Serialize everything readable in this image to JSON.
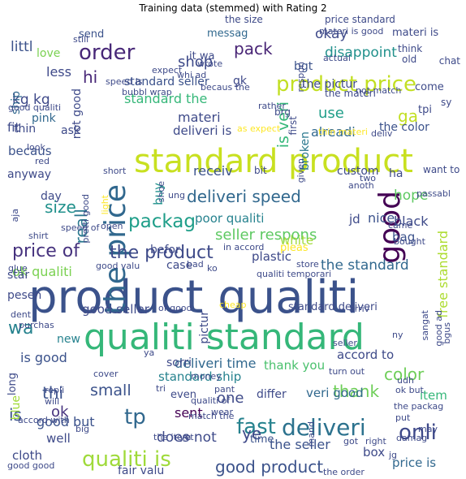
{
  "chart_data": {
    "type": "wordcloud",
    "title": "Training data (stemmed) with Rating 2",
    "words": [
      {
        "text": "product qualiti",
        "color": "#3b528b"
      },
      {
        "text": "standard product",
        "color": "#c8e020"
      },
      {
        "text": "qualiti standard",
        "color": "#35b779"
      },
      {
        "text": "the price",
        "color": "#31688e"
      },
      {
        "text": "deliveri",
        "color": "#2c728e"
      },
      {
        "text": "good",
        "color": "#440154"
      },
      {
        "text": "product price",
        "color": "#c2df23"
      },
      {
        "text": "order",
        "color": "#482878"
      },
      {
        "text": "qualiti is",
        "color": "#9fda3a"
      },
      {
        "text": "fast",
        "color": "#26828e"
      },
      {
        "text": "deliveri speed",
        "color": "#31688e"
      },
      {
        "text": "onli",
        "color": "#3e4989"
      },
      {
        "text": "good product",
        "color": "#3b528b"
      },
      {
        "text": "packag",
        "color": "#1f9e89"
      },
      {
        "text": "the product",
        "color": "#3e4a89"
      },
      {
        "text": "price of",
        "color": "#46327e"
      },
      {
        "text": "tp",
        "color": "#31688e"
      },
      {
        "text": "wa",
        "color": "#26828e"
      },
      {
        "text": "hi",
        "color": "#482878"
      },
      {
        "text": "pack",
        "color": "#482475"
      },
      {
        "text": "ga",
        "color": "#c2df23"
      },
      {
        "text": "reall",
        "color": "#2a788e"
      },
      {
        "text": "size",
        "color": "#21918c"
      },
      {
        "text": "color",
        "color": "#6ece58"
      },
      {
        "text": "thank",
        "color": "#6ece58"
      },
      {
        "text": "small",
        "color": "#3b528b"
      },
      {
        "text": "the standard",
        "color": "#31688e"
      },
      {
        "text": "seller respons",
        "color": "#5ec962"
      },
      {
        "text": "use",
        "color": "#1f9e89"
      },
      {
        "text": "disappoint",
        "color": "#21918c"
      },
      {
        "text": "shop",
        "color": "#3e4a89"
      },
      {
        "text": "is veri",
        "color": "#35b779"
      },
      {
        "text": "thi",
        "color": "#3b528b"
      },
      {
        "text": "is",
        "color": "#3b528b"
      },
      {
        "text": "ok",
        "color": "#46327e"
      },
      {
        "text": "one",
        "color": "#3e4a89"
      },
      {
        "text": "ye",
        "color": "#3e4989"
      },
      {
        "text": "does not",
        "color": "#3e4a89"
      },
      {
        "text": "sent",
        "color": "#440154"
      },
      {
        "text": "ok qualiti",
        "color": "#7ad151"
      },
      {
        "text": "free standard",
        "color": "#addc30"
      },
      {
        "text": "black",
        "color": "#3e4a89"
      },
      {
        "text": "hope",
        "color": "#5ec962"
      },
      {
        "text": "nice",
        "color": "#3b528b"
      },
      {
        "text": "buy",
        "color": "#21918c"
      },
      {
        "text": "receiv",
        "color": "#3b528b"
      },
      {
        "text": "alreadi",
        "color": "#31688e"
      },
      {
        "text": "okay",
        "color": "#3e4989"
      },
      {
        "text": "kg kg",
        "color": "#3e4989"
      },
      {
        "text": "littl",
        "color": "#3b528b"
      },
      {
        "text": "less",
        "color": "#3e4989"
      },
      {
        "text": "standard the",
        "color": "#35b779"
      },
      {
        "text": "the pictur",
        "color": "#3e4a89"
      },
      {
        "text": "standard seller",
        "color": "#3b528b"
      },
      {
        "text": "poor qualiti",
        "color": "#26828e"
      },
      {
        "text": "jd",
        "color": "#3e4a89"
      },
      {
        "text": "deliveri time",
        "color": "#31688e"
      },
      {
        "text": "standard ship",
        "color": "#26828e"
      },
      {
        "text": "is good",
        "color": "#3b528b"
      },
      {
        "text": "thank you",
        "color": "#4ac16d"
      },
      {
        "text": "accord to",
        "color": "#3e4a89"
      },
      {
        "text": "good but",
        "color": "#3b528b"
      },
      {
        "text": "well",
        "color": "#3e4a89"
      },
      {
        "text": "the seller",
        "color": "#3b528b"
      },
      {
        "text": "box",
        "color": "#3e4a89"
      },
      {
        "text": "price is",
        "color": "#31688e"
      },
      {
        "text": "veri good",
        "color": "#31688e"
      },
      {
        "text": "item",
        "color": "#35b779"
      },
      {
        "text": "differ",
        "color": "#3e4a89"
      },
      {
        "text": "cloth",
        "color": "#3e4a89"
      },
      {
        "text": "fair valu",
        "color": "#3e4a89"
      },
      {
        "text": "time",
        "color": "#3b528b"
      },
      {
        "text": "new",
        "color": "#26828e"
      },
      {
        "text": "good seller",
        "color": "#3e4a89"
      },
      {
        "text": "befor",
        "color": "#3e4a89"
      },
      {
        "text": "plastic",
        "color": "#3e4989"
      },
      {
        "text": "white",
        "color": "#9fda3a"
      },
      {
        "text": "bag",
        "color": "#3b528b"
      },
      {
        "text": "custom",
        "color": "#3e4a89"
      },
      {
        "text": "ha",
        "color": "#3e4989"
      },
      {
        "text": "gk",
        "color": "#3e4989"
      },
      {
        "text": "bgt",
        "color": "#3b528b"
      },
      {
        "text": "send",
        "color": "#3b528b"
      },
      {
        "text": "messag",
        "color": "#31688e"
      },
      {
        "text": "materi is",
        "color": "#3e4a89"
      },
      {
        "text": "love",
        "color": "#7ad151"
      },
      {
        "text": "it wa",
        "color": "#3e4a89"
      },
      {
        "text": "ship",
        "color": "#31688e"
      },
      {
        "text": "fit",
        "color": "#3e4a89"
      },
      {
        "text": "pink",
        "color": "#31688e"
      },
      {
        "text": "ask",
        "color": "#3e4a89"
      },
      {
        "text": "becaus",
        "color": "#3b528b"
      },
      {
        "text": "anyway",
        "color": "#3e4a89"
      },
      {
        "text": "day",
        "color": "#3e4a89"
      },
      {
        "text": "materi",
        "color": "#3e4a89"
      },
      {
        "text": "deliveri is",
        "color": "#3e4a89"
      },
      {
        "text": "the color",
        "color": "#3b528b"
      },
      {
        "text": "tpi",
        "color": "#3e4a89"
      },
      {
        "text": "sy",
        "color": "#3e4a89"
      },
      {
        "text": "come",
        "color": "#3e4a89"
      },
      {
        "text": "broken",
        "color": "#2a788e"
      },
      {
        "text": "star",
        "color": "#3e4a89"
      },
      {
        "text": "pesen",
        "color": "#3e4a89"
      },
      {
        "text": "case",
        "color": "#3e4a89"
      },
      {
        "text": "standard deliveri",
        "color": "#3e4a89"
      },
      {
        "text": "not good",
        "color": "#3e4a89"
      },
      {
        "text": "sorri",
        "color": "#3e4a89"
      },
      {
        "text": "even",
        "color": "#3e4a89"
      },
      {
        "text": "long",
        "color": "#3e4a89"
      },
      {
        "text": "blue",
        "color": "#a0da39"
      },
      {
        "text": "pictur",
        "color": "#3e4a89"
      },
      {
        "text": "the size",
        "color": "#3e4a89"
      },
      {
        "text": "price standard",
        "color": "#3e4a89"
      },
      {
        "text": "materi is good",
        "color": "#3e4a89"
      },
      {
        "text": "think",
        "color": "#3e4a89"
      },
      {
        "text": "old",
        "color": "#3e4a89"
      },
      {
        "text": "chat",
        "color": "#3e4a89"
      },
      {
        "text": "actual",
        "color": "#3e4a89"
      },
      {
        "text": "respon",
        "color": "#3e4a89"
      },
      {
        "text": "the materi",
        "color": "#3e4a89"
      },
      {
        "text": "not match",
        "color": "#3e4a89"
      },
      {
        "text": "first",
        "color": "#3e4a89"
      },
      {
        "text": "brg",
        "color": "#3e4a89"
      },
      {
        "text": "thin",
        "color": "#3e4a89"
      },
      {
        "text": "thin materi",
        "color": "#fde725"
      },
      {
        "text": "deliv",
        "color": "#3e4a89"
      },
      {
        "text": "want to",
        "color": "#3e4a89"
      },
      {
        "text": "two",
        "color": "#3e4a89"
      },
      {
        "text": "anoth",
        "color": "#3e4a89"
      },
      {
        "text": "passabl",
        "color": "#3e4a89"
      },
      {
        "text": "bought",
        "color": "#3e4a89"
      },
      {
        "text": "came",
        "color": "#3e4a89"
      },
      {
        "text": "store",
        "color": "#3e4a89"
      },
      {
        "text": "pleas",
        "color": "#fde725"
      },
      {
        "text": "in accord",
        "color": "#3e4a89"
      },
      {
        "text": "good qualiti",
        "color": "#3e4a89"
      },
      {
        "text": "still",
        "color": "#3e4a89"
      },
      {
        "text": "speed is",
        "color": "#3e4a89"
      },
      {
        "text": "bubbl wrap",
        "color": "#3e4a89"
      },
      {
        "text": "becaus the",
        "color": "#3e4a89"
      },
      {
        "text": "rather",
        "color": "#3e4a89"
      },
      {
        "text": "as expect",
        "color": "#fde725"
      },
      {
        "text": "expect",
        "color": "#3e4a89"
      },
      {
        "text": "whi ad",
        "color": "#3e4a89"
      },
      {
        "text": "wrote",
        "color": "#3e4a89"
      },
      {
        "text": "look",
        "color": "#3e4a89"
      },
      {
        "text": "red",
        "color": "#3e4a89"
      },
      {
        "text": "bit",
        "color": "#3e4a89"
      },
      {
        "text": "given",
        "color": "#3e4a89"
      },
      {
        "text": "short",
        "color": "#3e4a89"
      },
      {
        "text": "shoe",
        "color": "#3e4a89"
      },
      {
        "text": "ung",
        "color": "#3e4a89"
      },
      {
        "text": "open",
        "color": "#3e4a89"
      },
      {
        "text": "speed of",
        "color": "#3e4a89"
      },
      {
        "text": "shirt",
        "color": "#3e4a89"
      },
      {
        "text": "aja",
        "color": "#3e4a89"
      },
      {
        "text": "pretti good",
        "color": "#3e4a89"
      },
      {
        "text": "light",
        "color": "#fde725"
      },
      {
        "text": "glue",
        "color": "#3e4a89"
      },
      {
        "text": "good valu",
        "color": "#3e4a89"
      },
      {
        "text": "bad",
        "color": "#3e4a89"
      },
      {
        "text": "ko",
        "color": "#3e4a89"
      },
      {
        "text": "qualiti temporari",
        "color": "#3e4a89"
      },
      {
        "text": "dent",
        "color": "#3e4a89"
      },
      {
        "text": "of good",
        "color": "#3e4a89"
      },
      {
        "text": "cheap",
        "color": "#fde725"
      },
      {
        "text": "purchas",
        "color": "#3e4a89"
      },
      {
        "text": "arriv",
        "color": "#3e4a89"
      },
      {
        "text": "ny",
        "color": "#3e4a89"
      },
      {
        "text": "ya",
        "color": "#3e4a89"
      },
      {
        "text": "cover",
        "color": "#3e4a89"
      },
      {
        "text": "seller",
        "color": "#3e4a89"
      },
      {
        "text": "money",
        "color": "#3e4a89"
      },
      {
        "text": "turn out",
        "color": "#3e4a89"
      },
      {
        "text": "ok but",
        "color": "#3e4a89"
      },
      {
        "text": "udh",
        "color": "#3e4a89"
      },
      {
        "text": "tri",
        "color": "#3e4a89"
      },
      {
        "text": "pant",
        "color": "#3e4a89"
      },
      {
        "text": "qualiti of",
        "color": "#3e4a89"
      },
      {
        "text": "repli",
        "color": "#3e4a89"
      },
      {
        "text": "will",
        "color": "#3e4a89"
      },
      {
        "text": "wear",
        "color": "#3e4a89"
      },
      {
        "text": "match the",
        "color": "#3e4a89"
      },
      {
        "text": "put",
        "color": "#3e4a89"
      },
      {
        "text": "the packag",
        "color": "#3e4a89"
      },
      {
        "text": "accord with",
        "color": "#3e4a89"
      },
      {
        "text": "big",
        "color": "#3e4a89"
      },
      {
        "text": "the item",
        "color": "#3e4a89"
      },
      {
        "text": "yet",
        "color": "#3e4a89"
      },
      {
        "text": "mand",
        "color": "#3e4a89"
      },
      {
        "text": "got",
        "color": "#3e4a89"
      },
      {
        "text": "right",
        "color": "#3e4a89"
      },
      {
        "text": "damag",
        "color": "#3e4a89"
      },
      {
        "text": "may",
        "color": "#3e4a89"
      },
      {
        "text": "jg",
        "color": "#3e4a89"
      },
      {
        "text": "good good",
        "color": "#3e4a89"
      },
      {
        "text": "the order",
        "color": "#3e4a89"
      },
      {
        "text": "sangat",
        "color": "#3e4a89"
      },
      {
        "text": "good ad",
        "color": "#3e4a89"
      },
      {
        "text": "bgus",
        "color": "#3e4a89"
      }
    ]
  }
}
